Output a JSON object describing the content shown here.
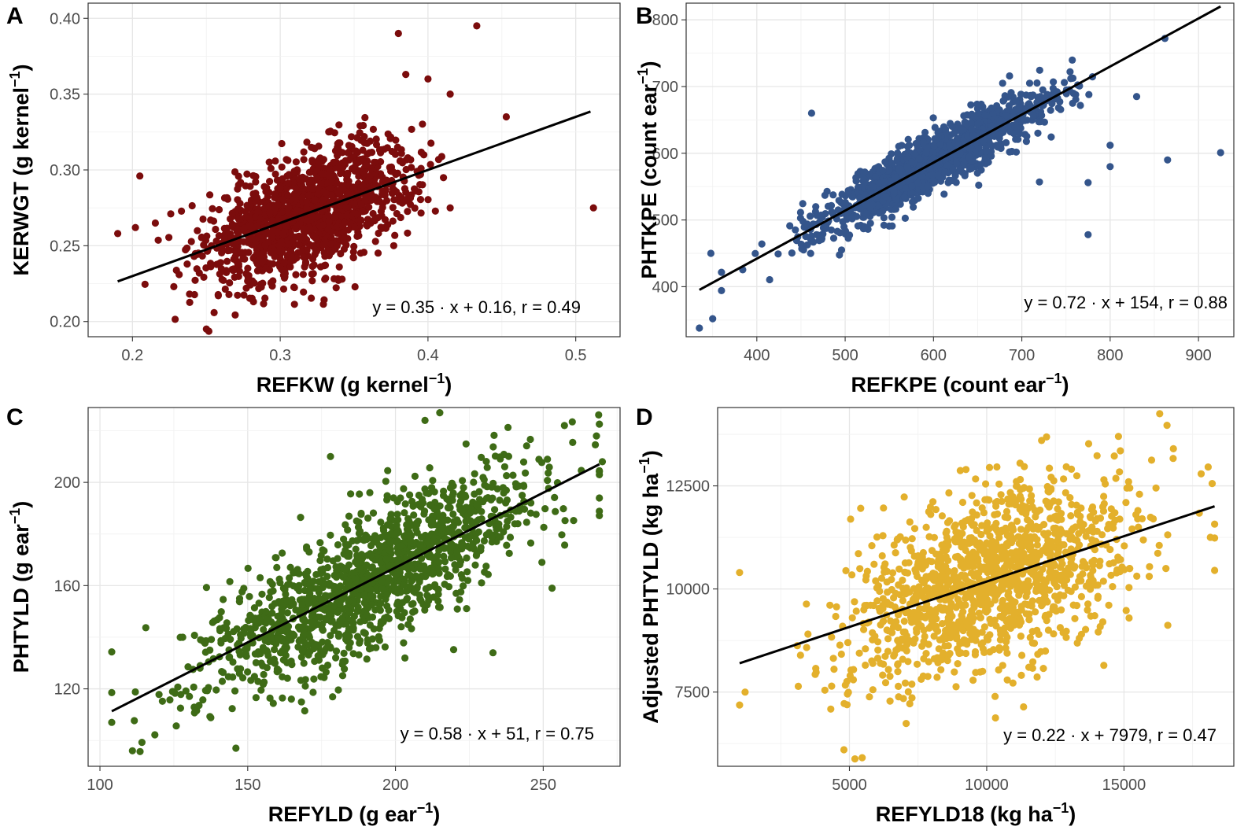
{
  "figure": {
    "description_note": "Four-panel scatter plot figure comparing measured traits with fitted regression lines"
  },
  "chart_data": [
    {
      "panel": "A",
      "type": "scatter",
      "xlabel": "REFKW (g kernel",
      "xlabel_sup": "−1",
      "xlabel_end": ")",
      "ylabel": "KERWGT (g kernel",
      "ylabel_sup": "−1",
      "ylabel_end": ")",
      "xlim": [
        0.17,
        0.53
      ],
      "ylim": [
        0.19,
        0.41
      ],
      "xticks": [
        0.2,
        0.3,
        0.4,
        0.5
      ],
      "xtick_labels": [
        "0.2",
        "0.3",
        "0.4",
        "0.5"
      ],
      "yticks": [
        0.2,
        0.25,
        0.3,
        0.35,
        0.4
      ],
      "ytick_labels": [
        "0.20",
        "0.25",
        "0.30",
        "0.35",
        "0.40"
      ],
      "point_color": "#7b0c0c",
      "n_points": 1400,
      "fit": {
        "slope": 0.35,
        "intercept": 0.16,
        "r": 0.49,
        "x_range": [
          0.19,
          0.51
        ]
      },
      "cloud": {
        "x_mean": 0.32,
        "x_sd": 0.035,
        "x_min": 0.19,
        "x_max": 0.45,
        "resid_sd": 0.019
      },
      "outliers": [
        [
          0.433,
          0.395
        ],
        [
          0.38,
          0.39
        ],
        [
          0.512,
          0.275
        ],
        [
          0.453,
          0.335
        ],
        [
          0.205,
          0.296
        ],
        [
          0.19,
          0.258
        ],
        [
          0.202,
          0.262
        ],
        [
          0.228,
          0.223
        ],
        [
          0.385,
          0.363
        ],
        [
          0.4,
          0.36
        ],
        [
          0.415,
          0.35
        ],
        [
          0.415,
          0.275
        ],
        [
          0.34,
          0.236
        ]
      ],
      "equation": "y = 0.35 · x + 0.16,  r = 0.49"
    },
    {
      "panel": "B",
      "type": "scatter",
      "xlabel": "REFKPE (count ear",
      "xlabel_sup": "−1",
      "xlabel_end": ")",
      "ylabel": "PHTKPE (count ear",
      "ylabel_sup": "−1",
      "ylabel_end": ")",
      "xlim": [
        320,
        940
      ],
      "ylim": [
        325,
        825
      ],
      "xticks": [
        400,
        500,
        600,
        700,
        800,
        900
      ],
      "xtick_labels": [
        "400",
        "500",
        "600",
        "700",
        "800",
        "900"
      ],
      "yticks": [
        400,
        500,
        600,
        700,
        800
      ],
      "ytick_labels": [
        "400",
        "500",
        "600",
        "700",
        "800"
      ],
      "point_color": "#34558b",
      "n_points": 1400,
      "fit": {
        "slope": 0.72,
        "intercept": 154,
        "r": 0.88,
        "x_range": [
          335,
          925
        ]
      },
      "cloud": {
        "x_mean": 600,
        "x_sd": 65,
        "x_min": 360,
        "x_max": 780,
        "resid_sd": 21
      },
      "outliers": [
        [
          925,
          601
        ],
        [
          865,
          590
        ],
        [
          862,
          772
        ],
        [
          830,
          685
        ],
        [
          775,
          478
        ],
        [
          800,
          612
        ],
        [
          462,
          660
        ],
        [
          335,
          338
        ],
        [
          350,
          352
        ],
        [
          348,
          450
        ],
        [
          775,
          556
        ],
        [
          720,
          557
        ],
        [
          800,
          580
        ]
      ],
      "equation": "y = 0.72 · x + 154,  r = 0.88"
    },
    {
      "panel": "C",
      "type": "scatter",
      "xlabel": "REFYLD (g ear",
      "xlabel_sup": "−1",
      "xlabel_end": ")",
      "ylabel": "PHTYLD (g ear",
      "ylabel_sup": "−1",
      "ylabel_end": ")",
      "xlim": [
        96,
        276
      ],
      "ylim": [
        90,
        229
      ],
      "xticks": [
        100,
        150,
        200,
        250
      ],
      "xtick_labels": [
        "100",
        "150",
        "200",
        "250"
      ],
      "yticks": [
        120,
        160,
        200
      ],
      "ytick_labels": [
        "120",
        "160",
        "200"
      ],
      "point_color": "#3e6b16",
      "n_points": 1400,
      "fit": {
        "slope": 0.58,
        "intercept": 51,
        "r": 0.75,
        "x_range": [
          104,
          269
        ]
      },
      "cloud": {
        "x_mean": 190,
        "x_sd": 30,
        "x_min": 104,
        "x_max": 269,
        "resid_sd": 13
      },
      "outliers": [
        [
          215,
          227
        ],
        [
          210,
          224
        ],
        [
          268,
          218
        ],
        [
          146,
          97
        ],
        [
          111,
          96
        ],
        [
          104,
          107
        ],
        [
          233,
          134
        ],
        [
          253,
          159
        ],
        [
          128,
          140
        ],
        [
          178,
          210
        ],
        [
          270,
          208
        ]
      ],
      "equation": "y = 0.58 · x + 51,  r = 0.75"
    },
    {
      "panel": "D",
      "type": "scatter",
      "xlabel": "REFYLD18 (kg ha",
      "xlabel_sup": "−1",
      "xlabel_end": ")",
      "ylabel": "Adjusted PHTYLD (kg ha",
      "ylabel_sup": "−1",
      "ylabel_end": ")",
      "xlim": [
        200,
        19000
      ],
      "ylim": [
        5700,
        14400
      ],
      "xticks": [
        5000,
        10000,
        15000
      ],
      "xtick_labels": [
        "5000",
        "10000",
        "15000"
      ],
      "yticks": [
        7500,
        10000,
        12500
      ],
      "ytick_labels": [
        "7500",
        "10000",
        "12500"
      ],
      "point_color": "#e3b02c",
      "n_points": 1400,
      "fit": {
        "slope": 0.22,
        "intercept": 7979,
        "r": 0.47,
        "x_range": [
          1000,
          18300
        ]
      },
      "cloud": {
        "x_mean": 10200,
        "x_sd": 2600,
        "x_min": 1000,
        "x_max": 18300,
        "resid_sd": 1050
      },
      "outliers": [
        [
          16300,
          14250
        ],
        [
          16800,
          13400
        ],
        [
          18300,
          10450
        ],
        [
          1000,
          10400
        ],
        [
          5200,
          5880
        ],
        [
          4800,
          6100
        ],
        [
          1200,
          7500
        ],
        [
          12000,
          13600
        ],
        [
          14800,
          13700
        ]
      ],
      "equation": "y = 0.22 · x + 7979,  r = 0.47"
    }
  ]
}
